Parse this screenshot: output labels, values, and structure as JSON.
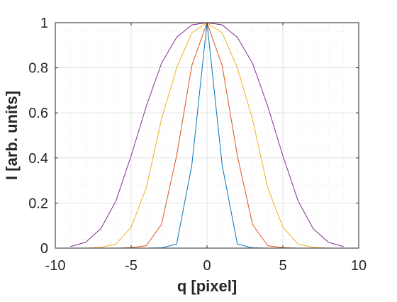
{
  "chart_data": {
    "type": "line",
    "title": "",
    "xlabel": "q [pixel]",
    "ylabel": "I [arb. units]",
    "xlim": [
      -10,
      10
    ],
    "ylim": [
      0,
      1
    ],
    "xticks": [
      -10,
      -5,
      0,
      5,
      10
    ],
    "xtick_labels": [
      "-10",
      "-5",
      "0",
      "5",
      "10"
    ],
    "yticks": [
      0,
      0.2,
      0.4,
      0.6,
      0.8,
      1
    ],
    "ytick_labels": [
      "0",
      "0.2",
      "0.4",
      "0.6",
      "0.8",
      "1"
    ],
    "grid": true,
    "minor_grid": true,
    "x": [
      -9,
      -8,
      -7,
      -6,
      -5,
      -4,
      -3,
      -2,
      -1,
      0,
      1,
      2,
      3,
      4,
      5,
      6,
      7,
      8,
      9
    ],
    "series": [
      {
        "color": "#0072BD",
        "values": [
          0,
          0,
          0,
          0,
          0,
          0,
          0.001,
          0.018,
          0.368,
          1,
          0.368,
          0.018,
          0.001,
          0,
          0,
          0,
          0,
          0,
          0
        ]
      },
      {
        "color": "#D95319",
        "values": [
          0,
          0,
          0,
          0,
          0.002,
          0.011,
          0.105,
          0.41,
          0.81,
          1,
          0.81,
          0.41,
          0.105,
          0.011,
          0.002,
          0,
          0,
          0,
          0
        ]
      },
      {
        "color": "#EDB120",
        "values": [
          0,
          0,
          0.003,
          0.018,
          0.093,
          0.268,
          0.572,
          0.8,
          0.955,
          1,
          0.955,
          0.8,
          0.572,
          0.268,
          0.093,
          0.018,
          0.003,
          0,
          0
        ]
      },
      {
        "color": "#7E2F8E",
        "values": [
          0.007,
          0.026,
          0.086,
          0.21,
          0.41,
          0.63,
          0.82,
          0.935,
          0.99,
          1,
          0.99,
          0.935,
          0.82,
          0.63,
          0.41,
          0.21,
          0.086,
          0.026,
          0.007
        ]
      }
    ]
  }
}
